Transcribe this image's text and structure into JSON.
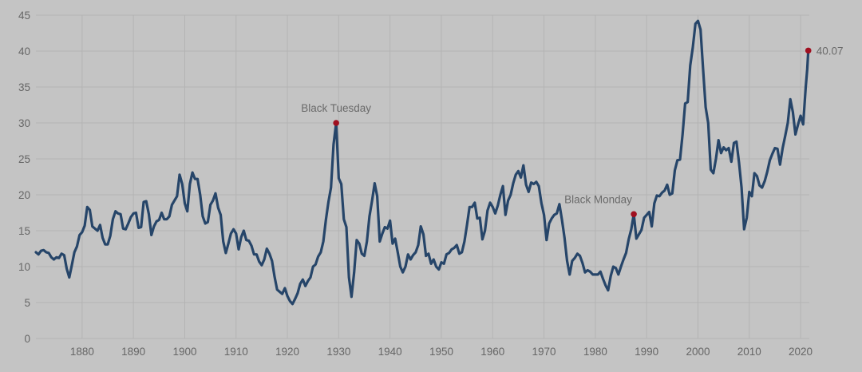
{
  "chart_data": {
    "type": "line",
    "title": "",
    "xlabel": "",
    "ylabel": "",
    "xlim": [
      1871,
      2021.7
    ],
    "ylim": [
      0,
      45
    ],
    "grid": true,
    "colors": {
      "line": "#264569",
      "marker": "#a01020",
      "background": "#c4c4c4",
      "grid": "#b4b4b4"
    },
    "x_ticks": [
      "1880",
      "1890",
      "1900",
      "1910",
      "1920",
      "1930",
      "1940",
      "1950",
      "1960",
      "1970",
      "1980",
      "1990",
      "2000",
      "2010",
      "2020"
    ],
    "y_ticks": [
      "0",
      "5",
      "10",
      "15",
      "20",
      "25",
      "30",
      "35",
      "40",
      "45"
    ],
    "series": [
      {
        "points": [
          [
            1871,
            12.0
          ],
          [
            1871.5,
            11.7
          ],
          [
            1872,
            12.2
          ],
          [
            1872.5,
            12.3
          ],
          [
            1873,
            12.0
          ],
          [
            1873.5,
            11.9
          ],
          [
            1874,
            11.3
          ],
          [
            1874.5,
            11.0
          ],
          [
            1875,
            11.3
          ],
          [
            1875.5,
            11.2
          ],
          [
            1876,
            11.8
          ],
          [
            1876.5,
            11.6
          ],
          [
            1877,
            9.7
          ],
          [
            1877.5,
            8.5
          ],
          [
            1878,
            10.2
          ],
          [
            1878.5,
            12.0
          ],
          [
            1879,
            12.8
          ],
          [
            1879.5,
            14.4
          ],
          [
            1880,
            14.8
          ],
          [
            1880.5,
            15.7
          ],
          [
            1881,
            18.3
          ],
          [
            1881.5,
            17.9
          ],
          [
            1882,
            15.6
          ],
          [
            1882.5,
            15.3
          ],
          [
            1883,
            15.0
          ],
          [
            1883.5,
            15.8
          ],
          [
            1884,
            14.0
          ],
          [
            1884.5,
            13.1
          ],
          [
            1885,
            13.1
          ],
          [
            1885.5,
            14.3
          ],
          [
            1886,
            16.6
          ],
          [
            1886.5,
            17.7
          ],
          [
            1887,
            17.4
          ],
          [
            1887.5,
            17.3
          ],
          [
            1888,
            15.3
          ],
          [
            1888.5,
            15.2
          ],
          [
            1889,
            16.0
          ],
          [
            1889.5,
            16.9
          ],
          [
            1890,
            17.4
          ],
          [
            1890.5,
            17.5
          ],
          [
            1891,
            15.4
          ],
          [
            1891.5,
            15.5
          ],
          [
            1892,
            19.0
          ],
          [
            1892.5,
            19.1
          ],
          [
            1893,
            17.3
          ],
          [
            1893.5,
            14.4
          ],
          [
            1894,
            15.6
          ],
          [
            1894.5,
            16.3
          ],
          [
            1895,
            16.5
          ],
          [
            1895.5,
            17.5
          ],
          [
            1896,
            16.6
          ],
          [
            1896.5,
            16.6
          ],
          [
            1897,
            17.0
          ],
          [
            1897.5,
            18.6
          ],
          [
            1898,
            19.2
          ],
          [
            1898.5,
            19.8
          ],
          [
            1899,
            22.8
          ],
          [
            1899.5,
            21.5
          ],
          [
            1900,
            18.8
          ],
          [
            1900.5,
            17.7
          ],
          [
            1901,
            21.5
          ],
          [
            1901.5,
            23.1
          ],
          [
            1902,
            22.2
          ],
          [
            1902.5,
            22.2
          ],
          [
            1903,
            20.0
          ],
          [
            1903.5,
            17.0
          ],
          [
            1904,
            16.0
          ],
          [
            1904.5,
            16.2
          ],
          [
            1905,
            18.6
          ],
          [
            1905.5,
            19.2
          ],
          [
            1906,
            20.2
          ],
          [
            1906.5,
            18.2
          ],
          [
            1907,
            17.2
          ],
          [
            1907.5,
            13.5
          ],
          [
            1908,
            11.9
          ],
          [
            1908.5,
            13.2
          ],
          [
            1909,
            14.6
          ],
          [
            1909.5,
            15.2
          ],
          [
            1910,
            14.6
          ],
          [
            1910.5,
            12.4
          ],
          [
            1911,
            14.1
          ],
          [
            1911.5,
            15.0
          ],
          [
            1912,
            13.7
          ],
          [
            1912.5,
            13.6
          ],
          [
            1913,
            12.9
          ],
          [
            1913.5,
            11.7
          ],
          [
            1914,
            11.7
          ],
          [
            1914.5,
            10.7
          ],
          [
            1915,
            10.2
          ],
          [
            1915.5,
            11.0
          ],
          [
            1916,
            12.5
          ],
          [
            1916.5,
            11.8
          ],
          [
            1917,
            10.8
          ],
          [
            1917.5,
            8.6
          ],
          [
            1918,
            6.8
          ],
          [
            1918.5,
            6.5
          ],
          [
            1919,
            6.2
          ],
          [
            1919.5,
            7.0
          ],
          [
            1920,
            5.9
          ],
          [
            1920.5,
            5.2
          ],
          [
            1921,
            4.8
          ],
          [
            1921.5,
            5.5
          ],
          [
            1922,
            6.3
          ],
          [
            1922.5,
            7.6
          ],
          [
            1923,
            8.2
          ],
          [
            1923.5,
            7.3
          ],
          [
            1924,
            8.0
          ],
          [
            1924.5,
            8.5
          ],
          [
            1925,
            10.0
          ],
          [
            1925.5,
            10.3
          ],
          [
            1926,
            11.4
          ],
          [
            1926.5,
            12.0
          ],
          [
            1927,
            13.5
          ],
          [
            1927.5,
            16.5
          ],
          [
            1928,
            19.0
          ],
          [
            1928.5,
            21.0
          ],
          [
            1929,
            27.0
          ],
          [
            1929.5,
            30.0
          ],
          [
            1930,
            22.3
          ],
          [
            1930.5,
            21.5
          ],
          [
            1931,
            16.6
          ],
          [
            1931.5,
            15.5
          ],
          [
            1932,
            8.5
          ],
          [
            1932.5,
            5.8
          ],
          [
            1933,
            9.2
          ],
          [
            1933.5,
            13.7
          ],
          [
            1934,
            13.2
          ],
          [
            1934.5,
            11.8
          ],
          [
            1935,
            11.5
          ],
          [
            1935.5,
            13.5
          ],
          [
            1936,
            17.0
          ],
          [
            1936.5,
            19.2
          ],
          [
            1937,
            21.6
          ],
          [
            1937.5,
            19.8
          ],
          [
            1938,
            13.5
          ],
          [
            1938.5,
            14.6
          ],
          [
            1939,
            15.5
          ],
          [
            1939.5,
            15.3
          ],
          [
            1940,
            16.4
          ],
          [
            1940.5,
            13.2
          ],
          [
            1941,
            13.9
          ],
          [
            1941.5,
            12.0
          ],
          [
            1942,
            10.0
          ],
          [
            1942.5,
            9.2
          ],
          [
            1943,
            10.0
          ],
          [
            1943.5,
            11.7
          ],
          [
            1944,
            11.0
          ],
          [
            1944.5,
            11.6
          ],
          [
            1945,
            12.0
          ],
          [
            1945.5,
            13.0
          ],
          [
            1946,
            15.6
          ],
          [
            1946.5,
            14.5
          ],
          [
            1947,
            11.5
          ],
          [
            1947.5,
            11.8
          ],
          [
            1948,
            10.4
          ],
          [
            1948.5,
            11.0
          ],
          [
            1949,
            10.0
          ],
          [
            1949.5,
            9.6
          ],
          [
            1950,
            10.6
          ],
          [
            1950.5,
            10.4
          ],
          [
            1951,
            11.7
          ],
          [
            1951.5,
            11.9
          ],
          [
            1952,
            12.4
          ],
          [
            1952.5,
            12.6
          ],
          [
            1953,
            13.0
          ],
          [
            1953.5,
            11.8
          ],
          [
            1954,
            12.0
          ],
          [
            1954.5,
            13.5
          ],
          [
            1955,
            15.8
          ],
          [
            1955.5,
            18.3
          ],
          [
            1956,
            18.3
          ],
          [
            1956.5,
            18.9
          ],
          [
            1957,
            16.7
          ],
          [
            1957.5,
            16.8
          ],
          [
            1958,
            13.8
          ],
          [
            1958.5,
            15.0
          ],
          [
            1959,
            17.8
          ],
          [
            1959.5,
            18.9
          ],
          [
            1960,
            18.3
          ],
          [
            1960.5,
            17.4
          ],
          [
            1961,
            18.5
          ],
          [
            1961.5,
            20.0
          ],
          [
            1962,
            21.2
          ],
          [
            1962.5,
            17.2
          ],
          [
            1963,
            19.2
          ],
          [
            1963.5,
            20.0
          ],
          [
            1964,
            21.6
          ],
          [
            1964.5,
            22.8
          ],
          [
            1965,
            23.3
          ],
          [
            1965.5,
            22.4
          ],
          [
            1966,
            24.1
          ],
          [
            1966.5,
            21.4
          ],
          [
            1967,
            20.4
          ],
          [
            1967.5,
            21.7
          ],
          [
            1968,
            21.5
          ],
          [
            1968.5,
            21.8
          ],
          [
            1969,
            21.2
          ],
          [
            1969.5,
            18.8
          ],
          [
            1970,
            17.2
          ],
          [
            1970.5,
            13.7
          ],
          [
            1971,
            16.0
          ],
          [
            1971.5,
            16.7
          ],
          [
            1972,
            17.2
          ],
          [
            1972.5,
            17.4
          ],
          [
            1973,
            18.7
          ],
          [
            1973.5,
            16.5
          ],
          [
            1974,
            14.0
          ],
          [
            1974.5,
            10.8
          ],
          [
            1975,
            8.9
          ],
          [
            1975.5,
            10.8
          ],
          [
            1976,
            11.2
          ],
          [
            1976.5,
            11.8
          ],
          [
            1977,
            11.5
          ],
          [
            1977.5,
            10.5
          ],
          [
            1978,
            9.2
          ],
          [
            1978.5,
            9.5
          ],
          [
            1979,
            9.3
          ],
          [
            1979.5,
            8.9
          ],
          [
            1980,
            8.9
          ],
          [
            1980.5,
            8.9
          ],
          [
            1981,
            9.3
          ],
          [
            1981.5,
            8.3
          ],
          [
            1982,
            7.4
          ],
          [
            1982.5,
            6.7
          ],
          [
            1983,
            8.7
          ],
          [
            1983.5,
            10.0
          ],
          [
            1984,
            9.8
          ],
          [
            1984.5,
            8.9
          ],
          [
            1985,
            10.0
          ],
          [
            1985.5,
            11.0
          ],
          [
            1986,
            11.9
          ],
          [
            1986.5,
            13.8
          ],
          [
            1987,
            15.2
          ],
          [
            1987.5,
            17.3
          ],
          [
            1988,
            13.9
          ],
          [
            1988.5,
            14.5
          ],
          [
            1989,
            15.1
          ],
          [
            1989.5,
            16.8
          ],
          [
            1990,
            17.2
          ],
          [
            1990.5,
            17.6
          ],
          [
            1991,
            15.6
          ],
          [
            1991.5,
            18.8
          ],
          [
            1992,
            19.9
          ],
          [
            1992.5,
            19.8
          ],
          [
            1993,
            20.3
          ],
          [
            1993.5,
            20.6
          ],
          [
            1994,
            21.4
          ],
          [
            1994.5,
            20.0
          ],
          [
            1995,
            20.2
          ],
          [
            1995.5,
            23.4
          ],
          [
            1996,
            24.8
          ],
          [
            1996.5,
            24.9
          ],
          [
            1997,
            28.4
          ],
          [
            1997.5,
            32.7
          ],
          [
            1998,
            32.9
          ],
          [
            1998.5,
            38.0
          ],
          [
            1999,
            40.5
          ],
          [
            1999.5,
            43.8
          ],
          [
            2000,
            44.2
          ],
          [
            2000.5,
            43.0
          ],
          [
            2001,
            37.5
          ],
          [
            2001.5,
            32.2
          ],
          [
            2002,
            30.0
          ],
          [
            2002.5,
            23.5
          ],
          [
            2003,
            23.0
          ],
          [
            2003.5,
            25.0
          ],
          [
            2004,
            27.6
          ],
          [
            2004.5,
            25.8
          ],
          [
            2005,
            26.6
          ],
          [
            2005.5,
            26.2
          ],
          [
            2006,
            26.5
          ],
          [
            2006.5,
            24.6
          ],
          [
            2007,
            27.2
          ],
          [
            2007.5,
            27.4
          ],
          [
            2008,
            24.5
          ],
          [
            2008.5,
            21.0
          ],
          [
            2009,
            15.2
          ],
          [
            2009.5,
            16.8
          ],
          [
            2010,
            20.4
          ],
          [
            2010.5,
            19.8
          ],
          [
            2011,
            23.0
          ],
          [
            2011.5,
            22.6
          ],
          [
            2012,
            21.3
          ],
          [
            2012.5,
            21.0
          ],
          [
            2013,
            21.9
          ],
          [
            2013.5,
            23.2
          ],
          [
            2014,
            24.8
          ],
          [
            2014.5,
            25.7
          ],
          [
            2015,
            26.5
          ],
          [
            2015.5,
            26.4
          ],
          [
            2016,
            24.2
          ],
          [
            2016.5,
            26.5
          ],
          [
            2017,
            28.2
          ],
          [
            2017.5,
            30.0
          ],
          [
            2018,
            33.3
          ],
          [
            2018.5,
            31.5
          ],
          [
            2019,
            28.4
          ],
          [
            2019.5,
            29.8
          ],
          [
            2020,
            31.0
          ],
          [
            2020.5,
            29.8
          ],
          [
            2021,
            35.0
          ],
          [
            2021.3,
            37.5
          ],
          [
            2021.5,
            40.07
          ]
        ]
      }
    ],
    "annotations": [
      {
        "label": "Black Tuesday",
        "x": 1929.5,
        "y": 30.0
      },
      {
        "label": "Black Monday",
        "x": 1987.5,
        "y": 17.3
      }
    ],
    "last_point": {
      "label": "40.07",
      "x": 2021.5,
      "y": 40.07
    }
  }
}
